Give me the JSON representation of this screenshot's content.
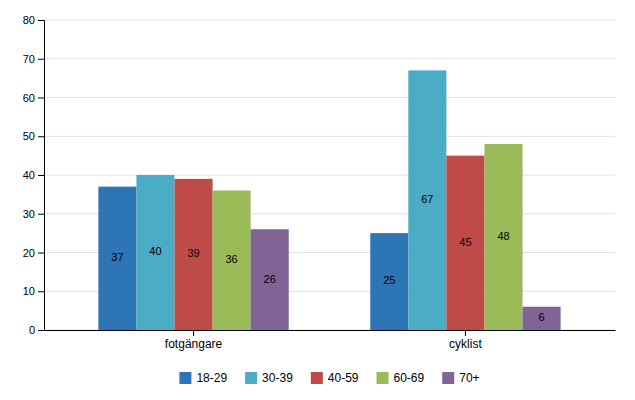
{
  "chart_data": {
    "type": "bar",
    "categories": [
      "fotgängare",
      "cyklist"
    ],
    "series": [
      {
        "name": "18-29",
        "color": "#2E75B6",
        "values": [
          37,
          25
        ]
      },
      {
        "name": "30-39",
        "color": "#4BACC6",
        "values": [
          40,
          67
        ]
      },
      {
        "name": "40-59",
        "color": "#BE4B48",
        "values": [
          39,
          45
        ]
      },
      {
        "name": "60-69",
        "color": "#9BBB59",
        "values": [
          36,
          48
        ]
      },
      {
        "name": "70+",
        "color": "#7F6495",
        "values": [
          26,
          6
        ]
      }
    ],
    "ylim": [
      0,
      80
    ],
    "yticks": [
      0,
      10,
      20,
      30,
      40,
      50,
      60,
      70,
      80
    ],
    "grid": true,
    "data_labels": true,
    "legend": "bottom"
  }
}
